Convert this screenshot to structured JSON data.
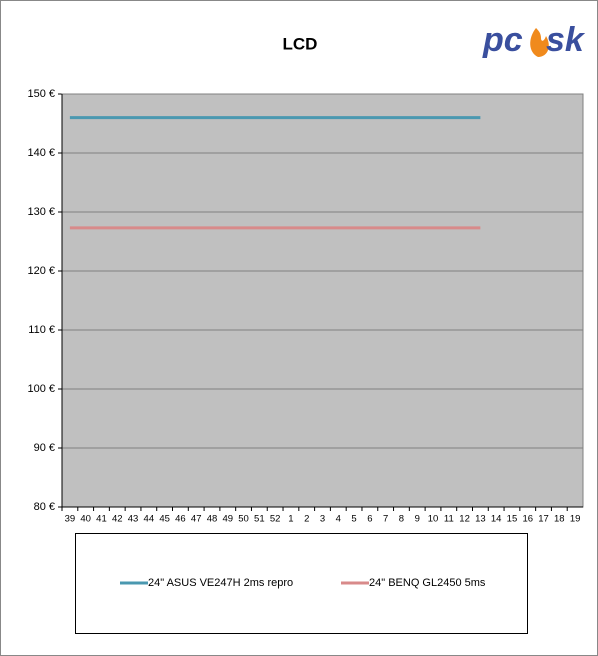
{
  "chart_data": {
    "type": "line",
    "title": "LCD",
    "logo": [
      "pc",
      "sk"
    ],
    "categories": [
      "39",
      "40",
      "41",
      "42",
      "43",
      "44",
      "45",
      "46",
      "47",
      "48",
      "49",
      "50",
      "51",
      "52",
      "1",
      "2",
      "3",
      "4",
      "5",
      "6",
      "7",
      "8",
      "9",
      "10",
      "11",
      "12",
      "13",
      "14",
      "15",
      "16",
      "17",
      "18",
      "19"
    ],
    "series": [
      {
        "name": "24\" ASUS VE247H 2ms repro",
        "color": "#4a98b0",
        "values": [
          146,
          146,
          146,
          146,
          146,
          146,
          146,
          146,
          146,
          146,
          146,
          146,
          146,
          146,
          146,
          146,
          146,
          146,
          146,
          146,
          146,
          146,
          146,
          146,
          146,
          146,
          146,
          null,
          null,
          null,
          null,
          null,
          null
        ]
      },
      {
        "name": "24\" BENQ GL2450 5ms",
        "color": "#d88a8a",
        "values": [
          127.3,
          127.3,
          127.3,
          127.3,
          127.3,
          127.3,
          127.3,
          127.3,
          127.3,
          127.3,
          127.3,
          127.3,
          127.3,
          127.3,
          127.3,
          127.3,
          127.3,
          127.3,
          127.3,
          127.3,
          127.3,
          127.3,
          127.3,
          127.3,
          127.3,
          127.3,
          127.3,
          null,
          null,
          null,
          null,
          null,
          null
        ]
      }
    ],
    "ylim": [
      80,
      150
    ],
    "yticks": [
      {
        "value": 80,
        "label": "80 €"
      },
      {
        "value": 90,
        "label": "90 €"
      },
      {
        "value": 100,
        "label": "100 €"
      },
      {
        "value": 110,
        "label": "110 €"
      },
      {
        "value": 120,
        "label": "120 €"
      },
      {
        "value": 130,
        "label": "130 €"
      },
      {
        "value": 140,
        "label": "140 €"
      },
      {
        "value": 150,
        "label": "150 €"
      }
    ],
    "grid": true,
    "legend": "bottom"
  }
}
